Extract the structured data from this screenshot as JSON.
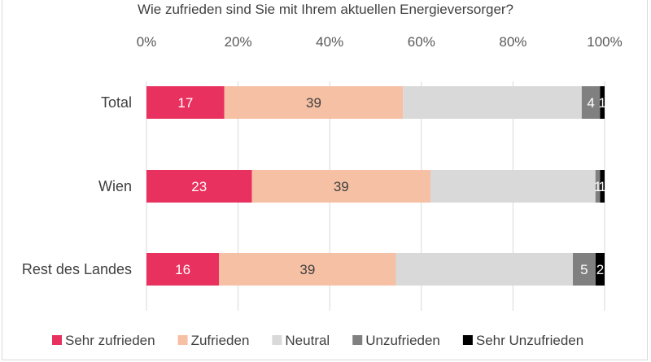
{
  "chart_data": {
    "type": "bar",
    "orientation": "horizontal",
    "stacked": true,
    "title": "Wie zufrieden sind Sie mit Ihrem aktuellen Energieversorger?",
    "categories": [
      "Total",
      "Wien",
      "Rest des Landes"
    ],
    "xlim": [
      0,
      100
    ],
    "xticks": [
      "0%",
      "20%",
      "40%",
      "60%",
      "80%",
      "100%"
    ],
    "legend_position": "bottom",
    "series": [
      {
        "name": "Sehr zufrieden",
        "color": "#e8315f",
        "label_color": "#ffffff",
        "values": [
          17,
          23,
          16
        ],
        "labels": [
          "17",
          "23",
          "16"
        ]
      },
      {
        "name": "Zufrieden",
        "color": "#f5c0a3",
        "label_color": "#404040",
        "values": [
          39,
          39,
          39
        ],
        "labels": [
          "39",
          "39",
          "39"
        ]
      },
      {
        "name": "Neutral",
        "color": "#d9d9d9",
        "label_color": "#404040",
        "values": [
          39,
          36,
          39
        ],
        "labels": [
          "",
          "",
          ""
        ]
      },
      {
        "name": "Unzufrieden",
        "color": "#808080",
        "label_color": "#ffffff",
        "values": [
          4,
          1,
          5
        ],
        "labels": [
          "4",
          "1",
          "5"
        ]
      },
      {
        "name": "Sehr Unzufrieden",
        "color": "#000000",
        "label_color": "#ffffff",
        "values": [
          1,
          1,
          2
        ],
        "labels": [
          "1",
          "1",
          "2"
        ]
      }
    ]
  }
}
